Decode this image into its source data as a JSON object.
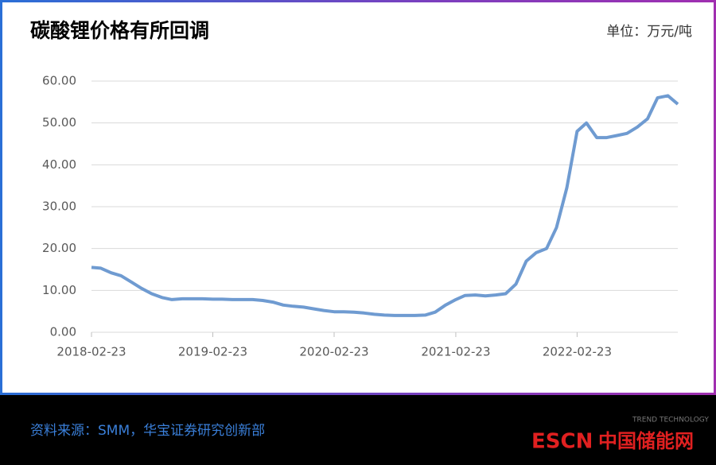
{
  "chart_data": {
    "type": "line",
    "title": "碳酸锂价格有所回调",
    "unit": "单位：万元/吨",
    "source": "资料来源：SMM，华宝证券研究创新部",
    "watermark": {
      "brand": "ESCN",
      "site": "中国储能网",
      "logo_text": "TREND TECHNOLOGY"
    },
    "x": [
      "2018-02-23",
      "2018-03-23",
      "2018-04-23",
      "2018-05-23",
      "2018-06-23",
      "2018-07-23",
      "2018-08-23",
      "2018-09-23",
      "2018-10-23",
      "2018-11-23",
      "2018-12-23",
      "2019-01-23",
      "2019-02-23",
      "2019-03-23",
      "2019-04-23",
      "2019-05-23",
      "2019-06-23",
      "2019-07-23",
      "2019-08-23",
      "2019-09-23",
      "2019-10-23",
      "2019-11-23",
      "2019-12-23",
      "2020-01-23",
      "2020-02-23",
      "2020-03-23",
      "2020-04-23",
      "2020-05-23",
      "2020-06-23",
      "2020-07-23",
      "2020-08-23",
      "2020-09-23",
      "2020-10-23",
      "2020-11-23",
      "2020-12-23",
      "2021-01-23",
      "2021-02-23",
      "2021-03-23",
      "2021-04-23",
      "2021-05-23",
      "2021-06-23",
      "2021-07-23",
      "2021-08-23",
      "2021-09-23",
      "2021-10-23",
      "2021-11-23",
      "2021-12-23",
      "2022-01-23",
      "2022-02-23",
      "2022-03-23",
      "2022-04-23",
      "2022-05-23",
      "2022-06-23",
      "2022-07-23",
      "2022-08-23",
      "2022-09-23",
      "2022-10-23",
      "2022-11-23",
      "2022-12-23"
    ],
    "series": [
      {
        "name": "碳酸锂价格",
        "color": "#6f9bd1",
        "values": [
          15.5,
          15.3,
          14.2,
          13.5,
          12.0,
          10.5,
          9.2,
          8.3,
          7.8,
          8.0,
          8.0,
          8.0,
          7.9,
          7.9,
          7.8,
          7.8,
          7.8,
          7.6,
          7.2,
          6.5,
          6.2,
          6.0,
          5.6,
          5.2,
          4.9,
          4.9,
          4.8,
          4.6,
          4.3,
          4.1,
          4.0,
          4.0,
          4.0,
          4.1,
          4.8,
          6.5,
          7.8,
          8.8,
          8.9,
          8.7,
          8.9,
          9.2,
          11.5,
          17.0,
          19.0,
          20.0,
          25.0,
          34.5,
          48.0,
          50.0,
          46.5,
          46.5,
          47.0,
          47.5,
          49.0,
          51.0,
          56.0,
          56.5,
          54.5
        ]
      }
    ],
    "xlim": [
      "2018-02-23",
      "2022-12-23"
    ],
    "xticks": [
      "2018-02-23",
      "2019-02-23",
      "2020-02-23",
      "2021-02-23",
      "2022-02-23"
    ],
    "ylim": [
      0,
      60
    ],
    "yticks": [
      {
        "value": 0,
        "label": "0.00"
      },
      {
        "value": 10,
        "label": "10.00"
      },
      {
        "value": 20,
        "label": "20.00"
      },
      {
        "value": 30,
        "label": "30.00"
      },
      {
        "value": 40,
        "label": "40.00"
      },
      {
        "value": 50,
        "label": "50.00"
      },
      {
        "value": 60,
        "label": "60.00"
      }
    ],
    "grid": true
  }
}
